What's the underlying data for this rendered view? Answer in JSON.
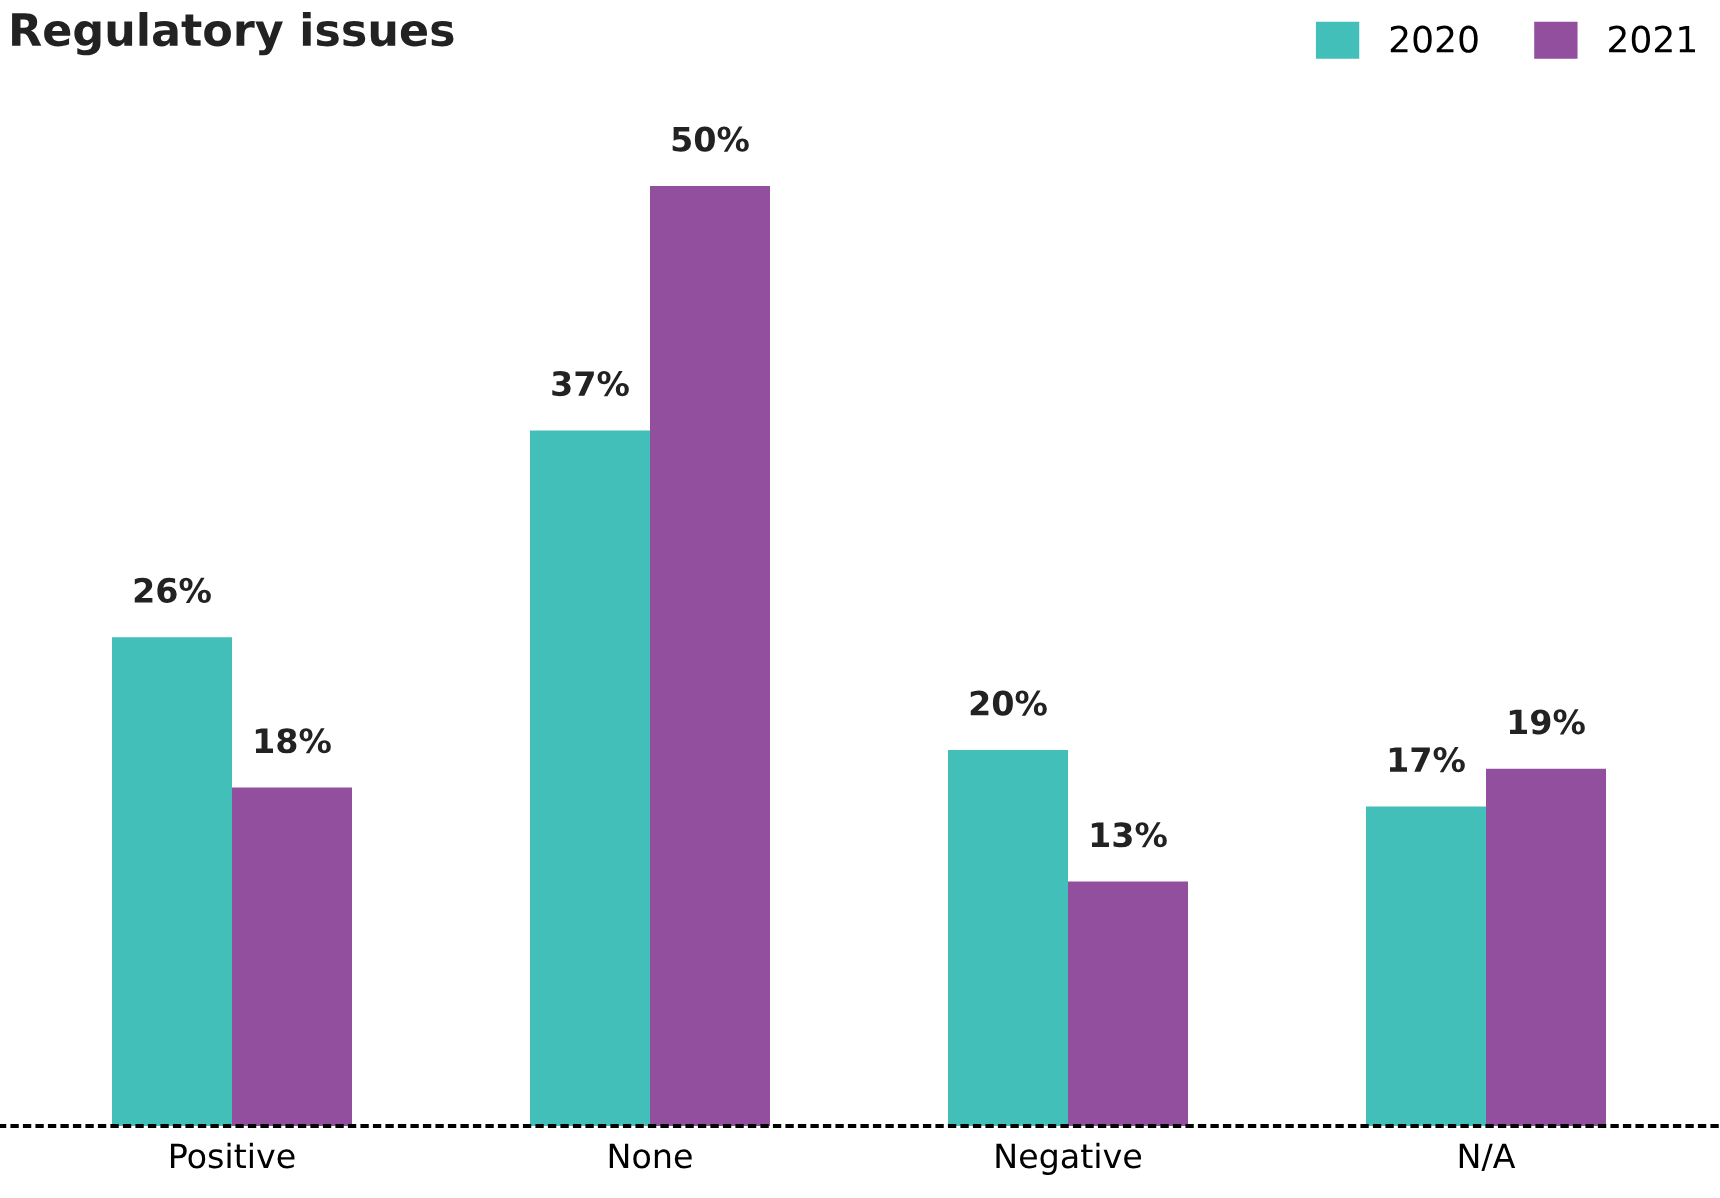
{
  "chart_data": {
    "type": "bar",
    "title": "Regulatory issues",
    "categories": [
      "Positive",
      "None",
      "Negative",
      "N/A"
    ],
    "series": [
      {
        "name": "2020",
        "color": "#41bfb8",
        "values": [
          26,
          37,
          20,
          17
        ],
        "value_labels": [
          "26%",
          "37%",
          "20%",
          "17%"
        ]
      },
      {
        "name": "2021",
        "color": "#914f9e",
        "values": [
          18,
          50,
          13,
          19
        ],
        "value_labels": [
          "18%",
          "50%",
          "13%",
          "19%"
        ]
      }
    ],
    "legend": "top right",
    "grid": false
  }
}
